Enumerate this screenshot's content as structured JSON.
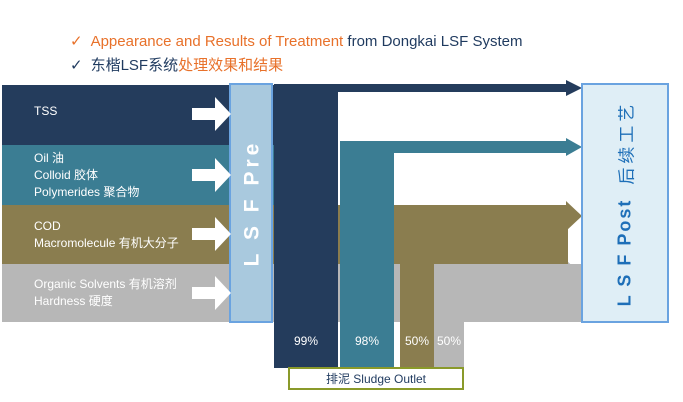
{
  "header": {
    "line1_part1": "Appearance and Results of Treatment",
    "line1_part2": "from Dongkai LSF System",
    "line2_part1": "东楷LSF系统",
    "line2_part2": "处理效果和结果"
  },
  "rows": [
    {
      "lines": [
        "TSS"
      ],
      "color": "#243c5c"
    },
    {
      "lines": [
        "Oil 油",
        "Colloid 胶体",
        "Polymerides 聚合物"
      ],
      "color": "#3b7d93"
    },
    {
      "lines": [
        "COD",
        "Macromolecule 有机大分子"
      ],
      "color": "#8a7d4f"
    },
    {
      "lines": [
        "Organic Solvents 有机溶剂",
        "Hardness 硬度"
      ],
      "color": "#b7b7b7"
    }
  ],
  "pre_label": "L S F  Pre",
  "post_label": "L S F Post",
  "post_sub": "后续工艺",
  "removal_percentages": [
    "99%",
    "98%",
    "50%",
    "50%"
  ],
  "outlet_label": "排泥 Sludge Outlet",
  "colors": {
    "navy": "#243c5c",
    "teal": "#3b7d93",
    "olive": "#8a7d4f",
    "gray": "#b7b7b7",
    "pre_box": "#a9c9de",
    "box_border": "#6aa3e0",
    "post_fill": "#dfeef6",
    "outlet_border": "#8a9a2a",
    "accent_orange": "#e8712a"
  }
}
